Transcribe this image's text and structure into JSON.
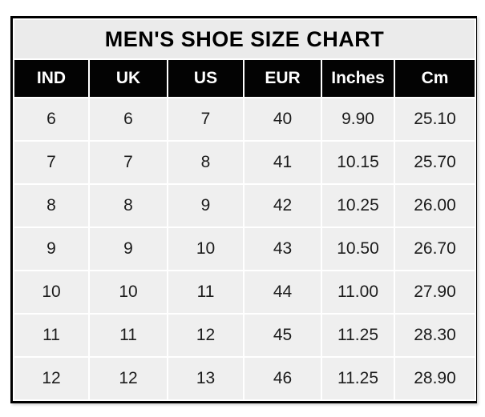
{
  "chart_data": {
    "type": "table",
    "title": "MEN'S SHOE SIZE CHART",
    "columns": [
      "IND",
      "UK",
      "US",
      "EUR",
      "Inches",
      "Cm"
    ],
    "rows": [
      [
        "6",
        "6",
        "7",
        "40",
        "9.90",
        "25.10"
      ],
      [
        "7",
        "7",
        "8",
        "41",
        "10.15",
        "25.70"
      ],
      [
        "8",
        "8",
        "9",
        "42",
        "10.25",
        "26.00"
      ],
      [
        "9",
        "9",
        "10",
        "43",
        "10.50",
        "26.70"
      ],
      [
        "10",
        "10",
        "11",
        "44",
        "11.00",
        "27.90"
      ],
      [
        "11",
        "11",
        "12",
        "45",
        "11.25",
        "28.30"
      ],
      [
        "12",
        "12",
        "13",
        "46",
        "11.25",
        "28.90"
      ]
    ],
    "layout": {
      "grid": "white-gridlines",
      "header_position": "top"
    }
  },
  "colors": {
    "outer_border": "#000000",
    "title_background": "#ebebeb",
    "header_background": "#030303",
    "header_text": "#ffffff",
    "cell_background": "#efefef",
    "cell_text": "#1c1c1c",
    "gridline": "#ffffff",
    "page_background": "#ffffff"
  }
}
